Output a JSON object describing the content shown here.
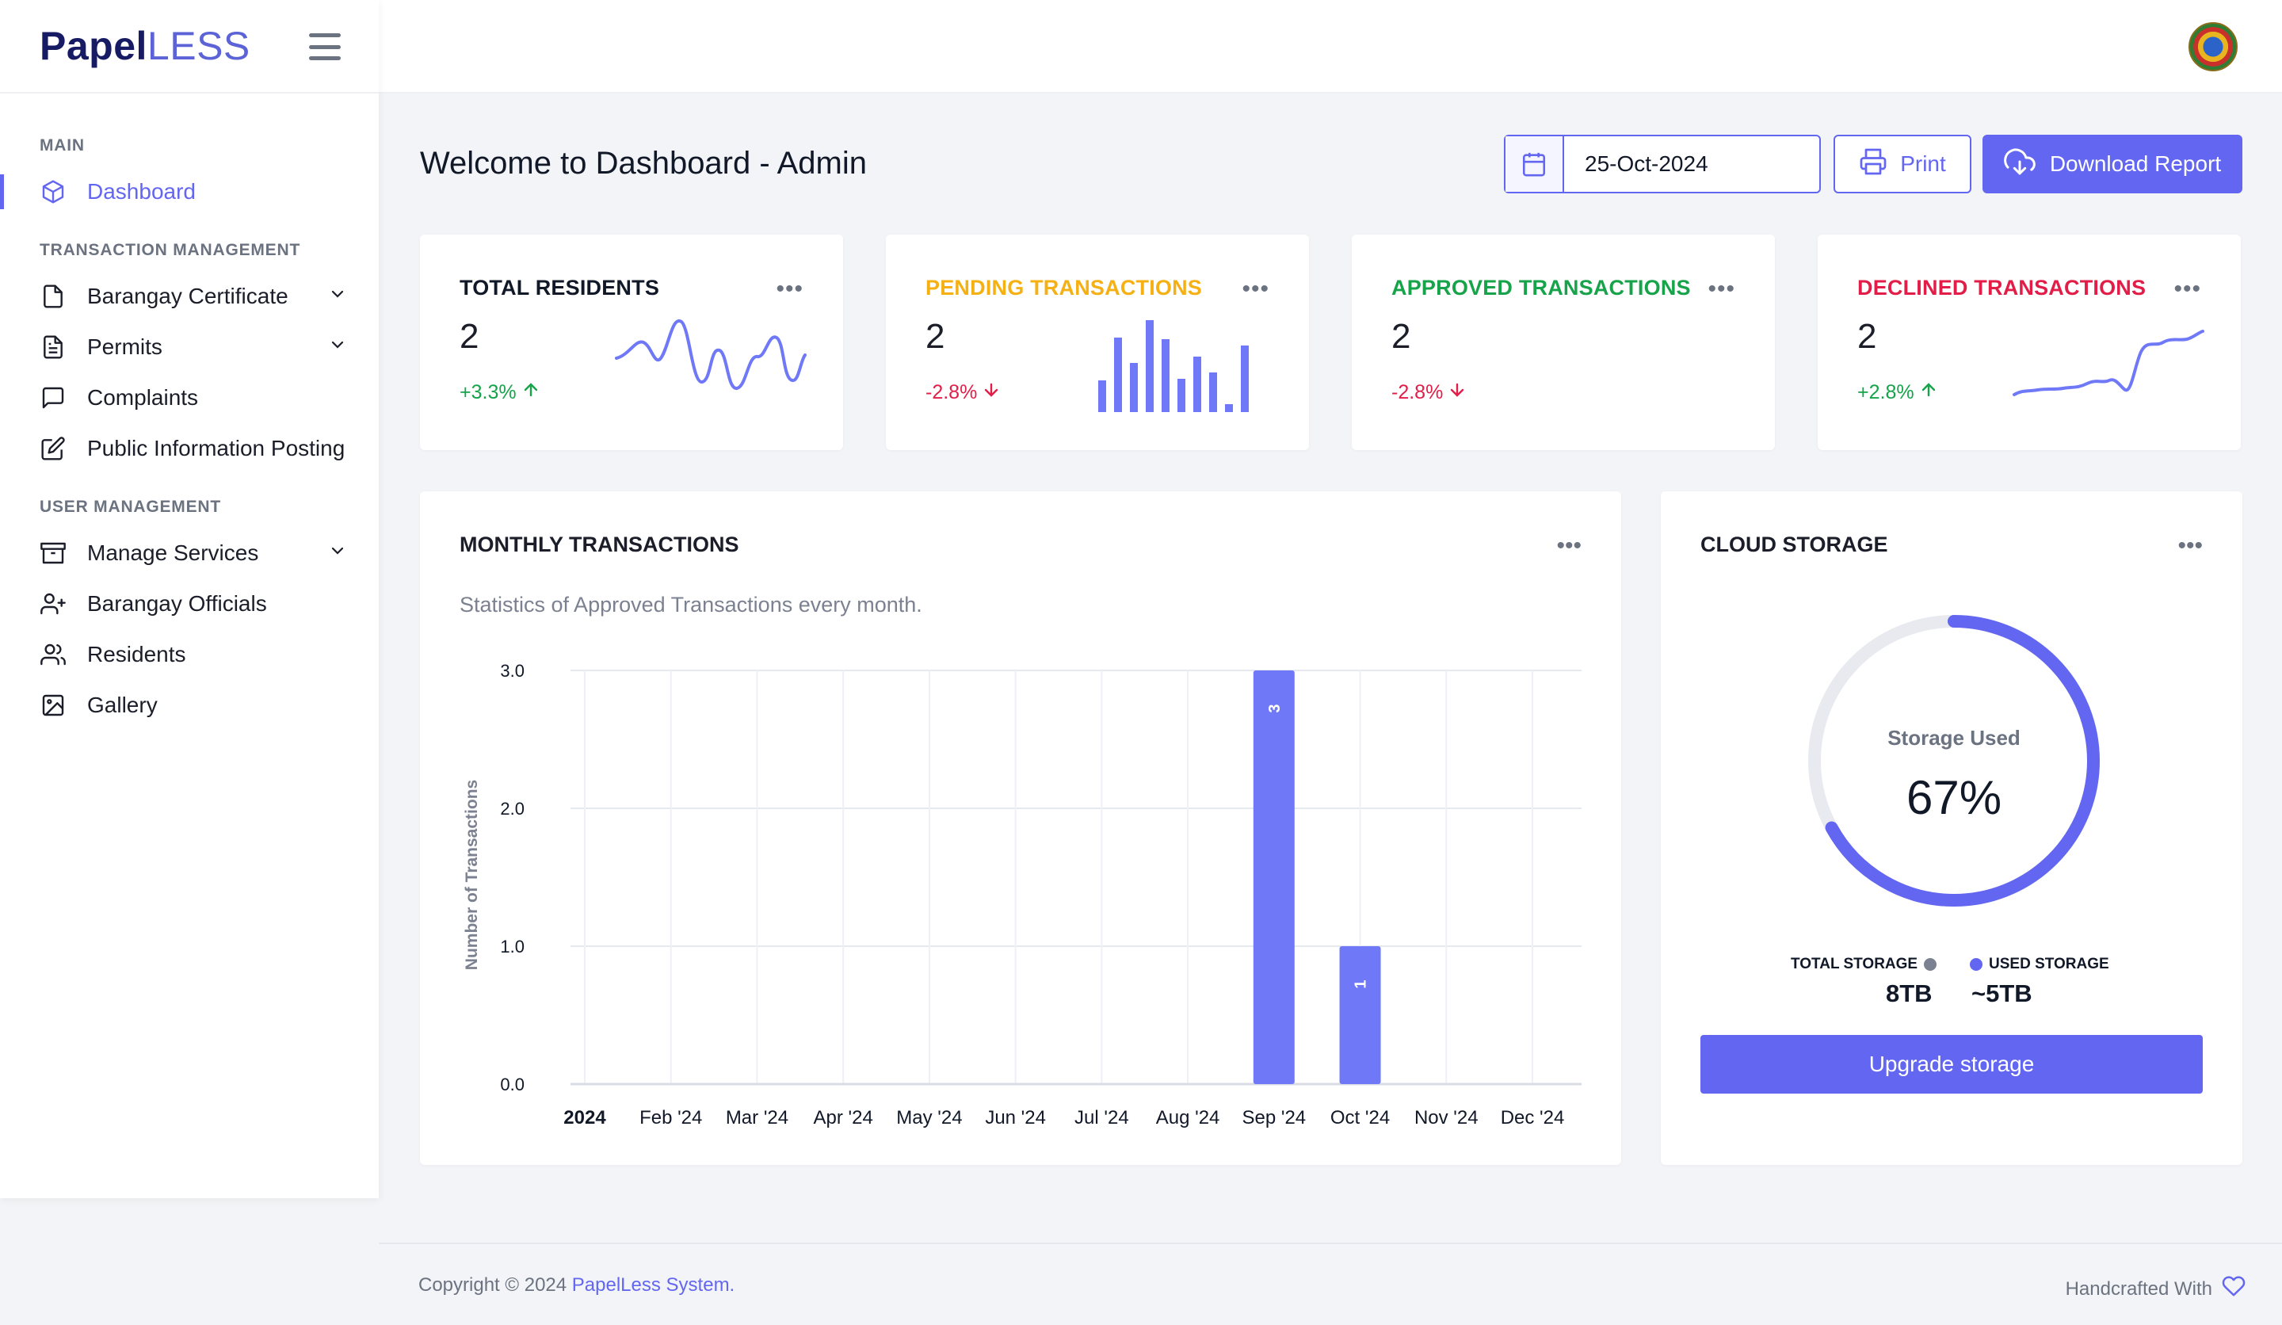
{
  "brand": {
    "bold": "Papel",
    "light": "LESS"
  },
  "sidebar": {
    "sections": [
      {
        "label": "MAIN",
        "items": [
          {
            "label": "Dashboard",
            "icon": "cube-icon",
            "active": true
          }
        ]
      },
      {
        "label": "TRANSACTION MANAGEMENT",
        "items": [
          {
            "label": "Barangay Certificate",
            "icon": "file-icon",
            "expandable": true
          },
          {
            "label": "Permits",
            "icon": "file-text-icon",
            "expandable": true
          },
          {
            "label": "Complaints",
            "icon": "message-square-icon"
          },
          {
            "label": "Public Information Posting",
            "icon": "edit-icon"
          }
        ]
      },
      {
        "label": "USER MANAGEMENT",
        "items": [
          {
            "label": "Manage Services",
            "icon": "archive-icon",
            "expandable": true
          },
          {
            "label": "Barangay Officials",
            "icon": "user-plus-icon"
          },
          {
            "label": "Residents",
            "icon": "users-icon"
          },
          {
            "label": "Gallery",
            "icon": "image-icon"
          }
        ]
      }
    ]
  },
  "header": {
    "title": "Welcome to Dashboard - Admin",
    "date": "25-Oct-2024",
    "print_label": "Print",
    "download_label": "Download Report"
  },
  "stats": [
    {
      "title": "TOTAL RESIDENTS",
      "value": "2",
      "change": "+3.3%",
      "direction": "up",
      "color": "#111827",
      "spark": "line"
    },
    {
      "title": "PENDING TRANSACTIONS",
      "value": "2",
      "change": "-2.8%",
      "direction": "down",
      "color": "#f5b014",
      "spark": "bar"
    },
    {
      "title": "APPROVED TRANSACTIONS",
      "value": "2",
      "change": "-2.8%",
      "direction": "down",
      "color": "#16a34a",
      "spark": "none"
    },
    {
      "title": "DECLINED TRANSACTIONS",
      "value": "2",
      "change": "+2.8%",
      "direction": "up",
      "color": "#e11d48",
      "spark": "line2"
    }
  ],
  "stats_dots": "•••",
  "monthly": {
    "title": "MONTHLY TRANSACTIONS",
    "subtitle": "Statistics of Approved Transactions every month."
  },
  "chart_data": {
    "type": "bar",
    "title": "MONTHLY TRANSACTIONS",
    "subtitle": "Statistics of Approved Transactions every month.",
    "xlabel": "",
    "ylabel": "Number of Transactions",
    "categories": [
      "2024",
      "Feb '24",
      "Mar '24",
      "Apr '24",
      "May '24",
      "Jun '24",
      "Jul '24",
      "Aug '24",
      "Sep '24",
      "Oct '24",
      "Nov '24",
      "Dec '24"
    ],
    "values": [
      0,
      0,
      0,
      0,
      0,
      0,
      0,
      0,
      3,
      1,
      0,
      0
    ],
    "yticks": [
      "0.0",
      "1.0",
      "2.0",
      "3.0"
    ],
    "ylim": [
      0,
      3
    ],
    "color": "#6f78f7",
    "grid": true
  },
  "cloud": {
    "title": "CLOUD STORAGE",
    "ring_label": "Storage Used",
    "percent_text": "67%",
    "percent": 0.67,
    "total_label": "TOTAL STORAGE",
    "total_value": "8TB",
    "used_label": "USED STORAGE",
    "used_value": "~5TB",
    "upgrade_label": "Upgrade storage",
    "colors": {
      "used": "#6366f1",
      "track": "#e5e7eb",
      "total_dot": "#6b7280"
    }
  },
  "footer": {
    "copyright": "Copyright © 2024 ",
    "link": "PapelLess System.",
    "right": "Handcrafted With"
  }
}
